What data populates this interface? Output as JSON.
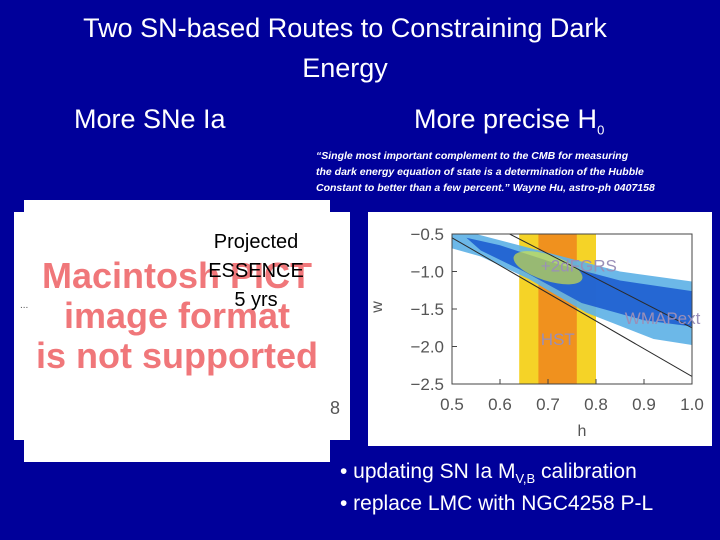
{
  "slide": {
    "title_line1": "Two SN-based Routes to Constraining Dark",
    "title_line2": "Energy",
    "left_heading": "More SNe Ia",
    "right_heading": "More precise H",
    "right_heading_sub": "0",
    "quote_line1": "“Single most important complement to the CMB for measuring",
    "quote_line2": "the dark energy equation of state is a determination of the Hubble",
    "quote_line3": "Constant to better than a few percent.”  Wayne Hu, astro-ph 0407158",
    "pict_placeholder_line1": "Macintosh PICT",
    "pict_placeholder_line2": "image format",
    "pict_placeholder_line3": "is not supported",
    "projection_line1": "Projected",
    "projection_line2": "ESSENCE",
    "projection_line3": "5 yrs",
    "left_axis_fragment": "8",
    "left_tick_fragment": "...",
    "bullet1_prefix": "• updating SN Ia M",
    "bullet1_sub": "V,B",
    "bullet1_suffix": " calibration",
    "bullet2": "• replace LMC with NGC4258 P-L"
  },
  "chart_data": {
    "type": "area",
    "xlabel": "h",
    "ylabel": "w",
    "xlim": [
      0.5,
      1.0
    ],
    "ylim": [
      -2.5,
      -0.5
    ],
    "x_ticks": [
      "0.5",
      "0.6",
      "0.7",
      "0.8",
      "0.9",
      "1.0"
    ],
    "y_ticks": [
      "−0.5",
      "−1.0",
      "−1.5",
      "−2.0",
      "−2.5"
    ],
    "annotations": [
      "+2dFGRS",
      "WMAPext",
      "HST"
    ],
    "hst_band_outer": [
      0.64,
      0.8
    ],
    "hst_band_inner": [
      0.68,
      0.76
    ],
    "colors": {
      "wmap_outer": "#5fb2e6",
      "wmap_inner": "#1f5fd0",
      "twodf": "#d6e640",
      "hst_outer": "#f5d327",
      "hst_inner": "#ef8a1e",
      "label": "#9a8fb8"
    }
  }
}
